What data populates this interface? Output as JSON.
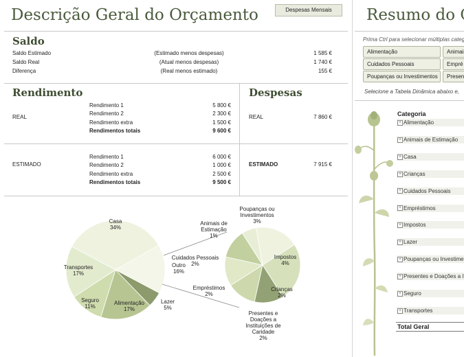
{
  "overview": {
    "title": "Descrição Geral do Orçamento",
    "button": "Despesas Mensais"
  },
  "saldo": {
    "heading": "Saldo",
    "rows": [
      {
        "label": "Saldo Estimado",
        "desc": "(Estimado menos despesas)",
        "value": "1 585 €"
      },
      {
        "label": "Saldo Real",
        "desc": "(Atual menos despesas)",
        "value": "1 740 €"
      },
      {
        "label": "Diferença",
        "desc": "(Real menos estimado)",
        "value": "155 €"
      }
    ]
  },
  "rendimento": {
    "heading": "Rendimento",
    "real": {
      "label": "REAL",
      "rows": [
        {
          "label": "Rendimento 1",
          "value": "5 800 €"
        },
        {
          "label": "Rendimento 2",
          "value": "2 300 €"
        },
        {
          "label": "Rendimento extra",
          "value": "1 500 €"
        }
      ],
      "total_label": "Rendimentos totais",
      "total_value": "9 600 €"
    },
    "estimado": {
      "label": "ESTIMADO",
      "rows": [
        {
          "label": "Rendimento 1",
          "value": "6 000 €"
        },
        {
          "label": "Rendimento 2",
          "value": "1 000 €"
        },
        {
          "label": "Rendimento extra",
          "value": "2 500 €"
        }
      ],
      "total_label": "Rendimentos totais",
      "total_value": "9 500 €"
    }
  },
  "despesas": {
    "heading": "Despesas",
    "real_label": "REAL",
    "real_value": "7 860 €",
    "estimado_label": "ESTIMADO",
    "estimado_value": "7 915 €"
  },
  "chart_data": {
    "type": "pie",
    "main_pie": [
      {
        "name": "Casa",
        "value": 34,
        "label": "34%",
        "color": "#eef2df"
      },
      {
        "name": "Outro",
        "value": 16,
        "label": "16%",
        "color": "#f3f6e8"
      },
      {
        "name": "Lazer",
        "value": 5,
        "label": "5%",
        "color": "#8c9a6c"
      },
      {
        "name": "Alimentação",
        "value": 17,
        "label": "17%",
        "color": "#b7c592"
      },
      {
        "name": "Seguro",
        "value": 11,
        "label": "11%",
        "color": "#cfdcae"
      },
      {
        "name": "Transportes",
        "value": 17,
        "label": "17%",
        "color": "#e3ebcf"
      }
    ],
    "secondary_pie": [
      {
        "name": "Poupanças ou Investimentos",
        "value": 3,
        "label": "3%",
        "color": "#eef2df"
      },
      {
        "name": "Impostos",
        "value": 4,
        "label": "4%",
        "color": "#d6e1bc"
      },
      {
        "name": "Crianças",
        "value": 2,
        "label": "2%",
        "color": "#93a274"
      },
      {
        "name": "Presentes e Doações a Instituições de Caridade",
        "value": 2,
        "label": "2%",
        "color": "#cdd9ad"
      },
      {
        "name": "Empréstimos",
        "value": 2,
        "label": "2%",
        "color": "#e0e8c7"
      },
      {
        "name": "Cuidados Pessoais",
        "value": 2,
        "label": "2%",
        "color": "#c2cf9f"
      },
      {
        "name": "Animais de Estimação",
        "value": 1,
        "label": "1%",
        "color": "#e8eed6"
      }
    ]
  },
  "resumo": {
    "title": "Resumo do Or",
    "hint": "Prima Ctrl para selecionar múltiplas catego",
    "slicers": [
      "Alimentação",
      "Animais",
      "Cuidados Pessoais",
      "Empré",
      "Poupanças ou Investimentos",
      "Present"
    ],
    "select_hint": "Selecione a Tabela Dinâmica abaixo e,",
    "category_header": "Categoria",
    "categories": [
      "Alimentação",
      "Animais de Estimação",
      "Casa",
      "Crianças",
      "Cuidados Pessoais",
      "Empréstimos",
      "Impostos",
      "Lazer",
      "Poupanças ou Investiment",
      "Presentes e Doações a Ins",
      "Seguro",
      "Transportes"
    ],
    "total_label": "Total Geral"
  }
}
